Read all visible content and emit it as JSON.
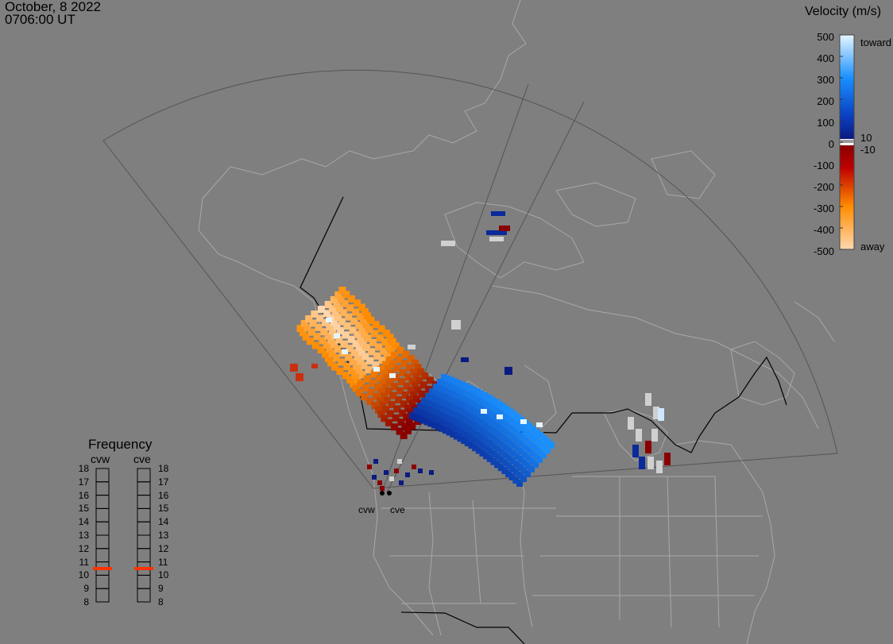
{
  "header": {
    "date": "October, 8 2022",
    "time": "0706:00 UT"
  },
  "velocity_scale": {
    "title": "Velocity (m/s)",
    "ticks": [
      "500",
      "400",
      "300",
      "200",
      "100",
      "0",
      "-100",
      "-200",
      "-300",
      "-400",
      "-500"
    ],
    "labels": {
      "toward": "toward",
      "away": "away",
      "plus10": "10",
      "minus10": "-10"
    },
    "colors": {
      "toward_light": "#e6f6ff",
      "toward_mid": "#1a90ff",
      "toward_dark": "#0a2a9a",
      "gray": "#d0d0d0",
      "away_dark": "#8a0000",
      "away_mid": "#ff8c00",
      "away_light": "#ffd8b0"
    }
  },
  "frequency": {
    "title": "Frequency",
    "radars": [
      "cvw",
      "cve"
    ],
    "ticks": [
      "18",
      "17",
      "16",
      "15",
      "14",
      "13",
      "12",
      "11",
      "10",
      "9",
      "8"
    ],
    "cvw_mhz": 10.5,
    "cve_mhz": 10.5,
    "marker_color": "#ff3300"
  },
  "sites": [
    "cvw",
    "cve"
  ]
}
